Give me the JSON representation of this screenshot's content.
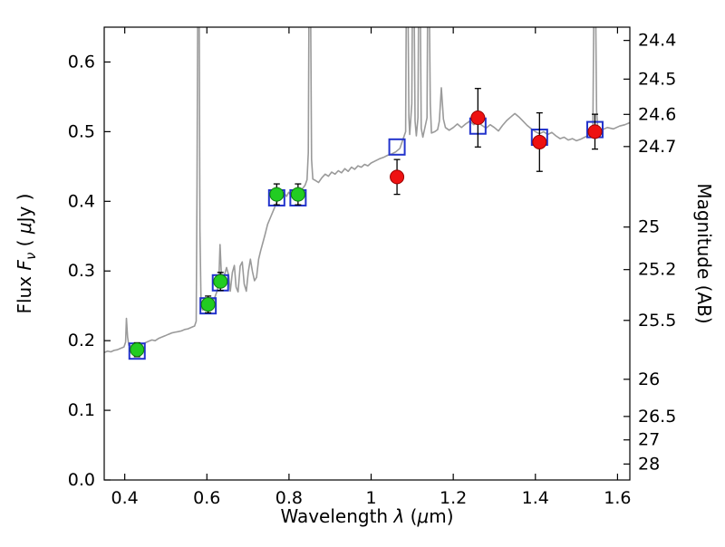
{
  "figure": {
    "background": "#ffffff"
  },
  "axes": {
    "xlabel_parts": {
      "text1": "Wavelength  ",
      "lambda": "λ",
      "text2": " (",
      "mu": "μ",
      "text3": "m)"
    },
    "ylabel_left_parts": {
      "text1": "Flux  ",
      "F": "F",
      "nu": "ν",
      "text2": "  ( ",
      "mu": "μ",
      "text3": "Jy )"
    },
    "ylabel_right": "Magnitude (AB)",
    "xlim": [
      0.35,
      1.63
    ],
    "ylim": [
      0.0,
      0.65
    ],
    "xticks": [
      0.4,
      0.6,
      0.8,
      1.0,
      1.2,
      1.4,
      1.6
    ],
    "xtick_labels": [
      "0.4",
      "0.6",
      "0.8",
      "1",
      "1.2",
      "1.4",
      "1.6"
    ],
    "yticks_left": [
      0.0,
      0.1,
      0.2,
      0.3,
      0.4,
      0.5,
      0.6
    ],
    "ytick_left_labels": [
      "0.0",
      "0.1",
      "0.2",
      "0.3",
      "0.4",
      "0.5",
      "0.6"
    ],
    "yticks_right_mag": [
      24.4,
      24.5,
      24.6,
      24.7,
      25,
      25.2,
      25.5,
      26,
      26.5,
      27,
      28
    ],
    "ytick_right_labels": [
      "24.4",
      "24.5",
      "24.6",
      "24.7",
      "25",
      "25.2",
      "25.5",
      "26",
      "26.5",
      "27",
      "28"
    ],
    "mag_zeropoint": 23.9,
    "frame_color": "#000000"
  },
  "chart_data": {
    "type": "line+scatter",
    "title": "",
    "xlabel": "Wavelength λ (μm)",
    "ylabel": "Flux F_ν (μJy)",
    "ylabel_right": "Magnitude (AB)",
    "xlim": [
      0.35,
      1.63
    ],
    "ylim": [
      0.0,
      0.65
    ],
    "grid": false,
    "legend": "none",
    "series": [
      {
        "name": "model-spectrum",
        "type": "line",
        "color": "#9a9a9a",
        "width": 1.6,
        "points": [
          [
            0.35,
            0.183
          ],
          [
            0.358,
            0.185
          ],
          [
            0.366,
            0.184
          ],
          [
            0.374,
            0.186
          ],
          [
            0.382,
            0.187
          ],
          [
            0.39,
            0.189
          ],
          [
            0.398,
            0.191
          ],
          [
            0.402,
            0.198
          ],
          [
            0.404,
            0.232
          ],
          [
            0.407,
            0.205
          ],
          [
            0.41,
            0.193
          ],
          [
            0.418,
            0.192
          ],
          [
            0.426,
            0.19
          ],
          [
            0.434,
            0.192
          ],
          [
            0.442,
            0.195
          ],
          [
            0.45,
            0.197
          ],
          [
            0.458,
            0.199
          ],
          [
            0.466,
            0.201
          ],
          [
            0.474,
            0.2
          ],
          [
            0.482,
            0.203
          ],
          [
            0.49,
            0.205
          ],
          [
            0.498,
            0.207
          ],
          [
            0.506,
            0.209
          ],
          [
            0.514,
            0.211
          ],
          [
            0.522,
            0.212
          ],
          [
            0.53,
            0.213
          ],
          [
            0.538,
            0.214
          ],
          [
            0.546,
            0.216
          ],
          [
            0.554,
            0.217
          ],
          [
            0.562,
            0.219
          ],
          [
            0.57,
            0.221
          ],
          [
            0.574,
            0.228
          ],
          [
            0.576,
            0.42
          ],
          [
            0.578,
            0.72
          ],
          [
            0.581,
            0.72
          ],
          [
            0.583,
            0.36
          ],
          [
            0.586,
            0.248
          ],
          [
            0.59,
            0.244
          ],
          [
            0.595,
            0.246
          ],
          [
            0.6,
            0.249
          ],
          [
            0.605,
            0.253
          ],
          [
            0.61,
            0.26
          ],
          [
            0.615,
            0.256
          ],
          [
            0.62,
            0.263
          ],
          [
            0.624,
            0.27
          ],
          [
            0.629,
            0.282
          ],
          [
            0.632,
            0.338
          ],
          [
            0.635,
            0.3
          ],
          [
            0.638,
            0.288
          ],
          [
            0.643,
            0.295
          ],
          [
            0.648,
            0.305
          ],
          [
            0.653,
            0.294
          ],
          [
            0.657,
            0.271
          ],
          [
            0.662,
            0.298
          ],
          [
            0.667,
            0.308
          ],
          [
            0.671,
            0.277
          ],
          [
            0.676,
            0.27
          ],
          [
            0.681,
            0.307
          ],
          [
            0.686,
            0.313
          ],
          [
            0.691,
            0.281
          ],
          [
            0.696,
            0.271
          ],
          [
            0.701,
            0.299
          ],
          [
            0.706,
            0.317
          ],
          [
            0.711,
            0.299
          ],
          [
            0.716,
            0.286
          ],
          [
            0.721,
            0.291
          ],
          [
            0.726,
            0.317
          ],
          [
            0.731,
            0.329
          ],
          [
            0.736,
            0.34
          ],
          [
            0.741,
            0.351
          ],
          [
            0.748,
            0.367
          ],
          [
            0.755,
            0.377
          ],
          [
            0.762,
            0.387
          ],
          [
            0.769,
            0.397
          ],
          [
            0.774,
            0.403
          ],
          [
            0.779,
            0.409
          ],
          [
            0.784,
            0.405
          ],
          [
            0.789,
            0.411
          ],
          [
            0.794,
            0.407
          ],
          [
            0.799,
            0.413
          ],
          [
            0.804,
            0.409
          ],
          [
            0.809,
            0.405
          ],
          [
            0.814,
            0.411
          ],
          [
            0.819,
            0.414
          ],
          [
            0.824,
            0.409
          ],
          [
            0.829,
            0.416
          ],
          [
            0.834,
            0.419
          ],
          [
            0.839,
            0.423
          ],
          [
            0.844,
            0.431
          ],
          [
            0.847,
            0.47
          ],
          [
            0.849,
            0.73
          ],
          [
            0.852,
            0.73
          ],
          [
            0.855,
            0.46
          ],
          [
            0.858,
            0.432
          ],
          [
            0.864,
            0.43
          ],
          [
            0.872,
            0.427
          ],
          [
            0.88,
            0.434
          ],
          [
            0.888,
            0.439
          ],
          [
            0.896,
            0.436
          ],
          [
            0.904,
            0.442
          ],
          [
            0.912,
            0.439
          ],
          [
            0.92,
            0.444
          ],
          [
            0.928,
            0.441
          ],
          [
            0.936,
            0.447
          ],
          [
            0.944,
            0.443
          ],
          [
            0.952,
            0.449
          ],
          [
            0.96,
            0.446
          ],
          [
            0.968,
            0.451
          ],
          [
            0.976,
            0.449
          ],
          [
            0.984,
            0.453
          ],
          [
            0.992,
            0.451
          ],
          [
            1.0,
            0.455
          ],
          [
            1.01,
            0.458
          ],
          [
            1.02,
            0.461
          ],
          [
            1.03,
            0.463
          ],
          [
            1.04,
            0.466
          ],
          [
            1.05,
            0.468
          ],
          [
            1.06,
            0.471
          ],
          [
            1.07,
            0.476
          ],
          [
            1.084,
            0.5
          ],
          [
            1.086,
            0.73
          ],
          [
            1.089,
            0.73
          ],
          [
            1.092,
            0.52
          ],
          [
            1.094,
            0.496
          ],
          [
            1.099,
            0.54
          ],
          [
            1.101,
            0.73
          ],
          [
            1.104,
            0.73
          ],
          [
            1.107,
            0.515
          ],
          [
            1.11,
            0.494
          ],
          [
            1.114,
            0.52
          ],
          [
            1.116,
            0.73
          ],
          [
            1.119,
            0.73
          ],
          [
            1.122,
            0.505
          ],
          [
            1.126,
            0.492
          ],
          [
            1.136,
            0.52
          ],
          [
            1.138,
            0.73
          ],
          [
            1.141,
            0.73
          ],
          [
            1.144,
            0.54
          ],
          [
            1.147,
            0.498
          ],
          [
            1.155,
            0.5
          ],
          [
            1.162,
            0.503
          ],
          [
            1.166,
            0.515
          ],
          [
            1.171,
            0.563
          ],
          [
            1.176,
            0.518
          ],
          [
            1.181,
            0.506
          ],
          [
            1.19,
            0.502
          ],
          [
            1.2,
            0.506
          ],
          [
            1.21,
            0.511
          ],
          [
            1.22,
            0.506
          ],
          [
            1.23,
            0.511
          ],
          [
            1.24,
            0.515
          ],
          [
            1.25,
            0.51
          ],
          [
            1.26,
            0.514
          ],
          [
            1.27,
            0.509
          ],
          [
            1.28,
            0.505
          ],
          [
            1.29,
            0.51
          ],
          [
            1.3,
            0.506
          ],
          [
            1.31,
            0.501
          ],
          [
            1.32,
            0.509
          ],
          [
            1.33,
            0.516
          ],
          [
            1.34,
            0.521
          ],
          [
            1.35,
            0.526
          ],
          [
            1.36,
            0.521
          ],
          [
            1.37,
            0.515
          ],
          [
            1.38,
            0.509
          ],
          [
            1.39,
            0.504
          ],
          [
            1.4,
            0.5
          ],
          [
            1.41,
            0.497
          ],
          [
            1.42,
            0.5
          ],
          [
            1.43,
            0.496
          ],
          [
            1.44,
            0.499
          ],
          [
            1.45,
            0.494
          ],
          [
            1.46,
            0.49
          ],
          [
            1.47,
            0.492
          ],
          [
            1.48,
            0.488
          ],
          [
            1.49,
            0.49
          ],
          [
            1.5,
            0.487
          ],
          [
            1.51,
            0.489
          ],
          [
            1.52,
            0.492
          ],
          [
            1.53,
            0.495
          ],
          [
            1.54,
            0.505
          ],
          [
            1.543,
            0.73
          ],
          [
            1.546,
            0.73
          ],
          [
            1.549,
            0.53
          ],
          [
            1.552,
            0.503
          ],
          [
            1.56,
            0.502
          ],
          [
            1.575,
            0.506
          ],
          [
            1.59,
            0.504
          ],
          [
            1.605,
            0.508
          ],
          [
            1.618,
            0.51
          ],
          [
            1.63,
            0.513
          ]
        ]
      },
      {
        "name": "model-photometry-squares",
        "type": "scatter",
        "marker": "square-open",
        "stroke": "#2233cc",
        "size": 17,
        "points": [
          {
            "x": 0.43,
            "y": 0.185
          },
          {
            "x": 0.603,
            "y": 0.25
          },
          {
            "x": 0.633,
            "y": 0.283
          },
          {
            "x": 0.77,
            "y": 0.405
          },
          {
            "x": 0.822,
            "y": 0.405
          },
          {
            "x": 1.063,
            "y": 0.478
          },
          {
            "x": 1.26,
            "y": 0.508
          },
          {
            "x": 1.41,
            "y": 0.492
          },
          {
            "x": 1.545,
            "y": 0.503
          }
        ]
      },
      {
        "name": "observed-optical-photometry",
        "type": "scatter",
        "marker": "circle",
        "fill": "#22cc22",
        "edge": "#0f7a0f",
        "size": 7.5,
        "error_color": "#000000",
        "points": [
          {
            "x": 0.43,
            "y": 0.187,
            "yerr": 0.01
          },
          {
            "x": 0.603,
            "y": 0.252,
            "yerr": 0.012
          },
          {
            "x": 0.633,
            "y": 0.285,
            "yerr": 0.013
          },
          {
            "x": 0.77,
            "y": 0.41,
            "yerr": 0.015
          },
          {
            "x": 0.822,
            "y": 0.41,
            "yerr": 0.015
          }
        ]
      },
      {
        "name": "observed-nir-photometry",
        "type": "scatter",
        "marker": "circle",
        "fill": "#ee1111",
        "edge": "#990000",
        "size": 7.5,
        "error_color": "#000000",
        "points": [
          {
            "x": 1.063,
            "y": 0.435,
            "yerr": 0.025
          },
          {
            "x": 1.26,
            "y": 0.52,
            "yerr": 0.042
          },
          {
            "x": 1.41,
            "y": 0.485,
            "yerr": 0.042
          },
          {
            "x": 1.545,
            "y": 0.5,
            "yerr": 0.025
          }
        ]
      }
    ]
  }
}
